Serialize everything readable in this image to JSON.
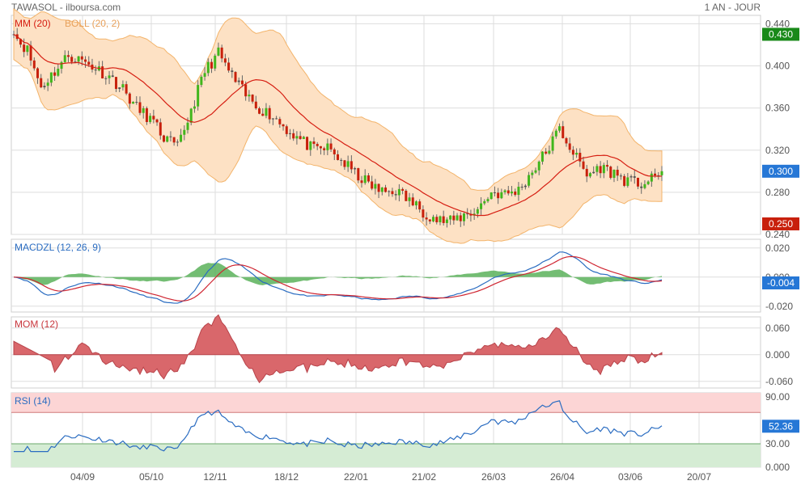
{
  "header": {
    "title": "TAWASOL - ilboursa.com",
    "period": "1 AN - JOUR"
  },
  "colors": {
    "up": "#41b61c",
    "down": "#c8200c",
    "ma": "#d61e12",
    "boll_fill": "#fde1c4",
    "boll_line": "#f3b46b",
    "macd": "#2a6cc1",
    "signal": "#cf2531",
    "hist": "#5ab25a",
    "mom_fill": "#d9676b",
    "rsi_line": "#2a6cc1",
    "rsi_over": "#fcd5d5",
    "rsi_under": "#d5ecd4",
    "grid": "#dddddd",
    "last_price_tag": "#2677d6",
    "high_tag": "#198919",
    "low_tag": "#c8200c"
  },
  "chart_data": [
    {
      "type": "candlestick",
      "panel": "price",
      "legend": [
        "MM (20)",
        "BOLL (20, 2)"
      ],
      "ylim": [
        0.24,
        0.448
      ],
      "y_ticks": [
        "0.440",
        "0.400",
        "0.360",
        "0.320",
        "0.280",
        "0.240"
      ],
      "y_tick_values": [
        0.44,
        0.4,
        0.36,
        0.32,
        0.28,
        0.24
      ],
      "x_ticks": [
        "04/09",
        "05/10",
        "12/11",
        "18/12",
        "22/01",
        "21/02",
        "26/03",
        "26/04",
        "03/06",
        "20/07"
      ],
      "value_tags": [
        {
          "label": "0.430",
          "value": 0.43,
          "role": "high"
        },
        {
          "label": "0.300",
          "value": 0.3,
          "role": "last"
        },
        {
          "label": "0.250",
          "value": 0.25,
          "role": "low"
        }
      ],
      "close_path": [
        [
          0,
          0.43
        ],
        [
          4,
          0.415
        ],
        [
          8,
          0.38
        ],
        [
          12,
          0.395
        ],
        [
          16,
          0.41
        ],
        [
          20,
          0.405
        ],
        [
          24,
          0.398
        ],
        [
          28,
          0.39
        ],
        [
          32,
          0.378
        ],
        [
          36,
          0.36
        ],
        [
          40,
          0.35
        ],
        [
          44,
          0.332
        ],
        [
          48,
          0.322
        ],
        [
          52,
          0.358
        ],
        [
          56,
          0.395
        ],
        [
          60,
          0.412
        ],
        [
          64,
          0.39
        ],
        [
          68,
          0.372
        ],
        [
          72,
          0.36
        ],
        [
          76,
          0.352
        ],
        [
          80,
          0.34
        ],
        [
          84,
          0.33
        ],
        [
          88,
          0.32
        ],
        [
          92,
          0.322
        ],
        [
          96,
          0.31
        ],
        [
          100,
          0.298
        ],
        [
          104,
          0.288
        ],
        [
          108,
          0.28
        ],
        [
          112,
          0.282
        ],
        [
          116,
          0.272
        ],
        [
          120,
          0.262
        ],
        [
          124,
          0.254
        ],
        [
          128,
          0.252
        ],
        [
          132,
          0.258
        ],
        [
          136,
          0.264
        ],
        [
          140,
          0.28
        ],
        [
          144,
          0.278
        ],
        [
          148,
          0.282
        ],
        [
          152,
          0.3
        ],
        [
          156,
          0.318
        ],
        [
          160,
          0.34
        ],
        [
          164,
          0.318
        ],
        [
          168,
          0.296
        ],
        [
          172,
          0.304
        ],
        [
          176,
          0.298
        ],
        [
          180,
          0.29
        ],
        [
          184,
          0.288
        ],
        [
          188,
          0.293
        ],
        [
          190,
          0.3
        ]
      ]
    },
    {
      "type": "line",
      "panel": "macd",
      "legend": [
        "MACDZL (12, 26, 9)"
      ],
      "ylim": [
        -0.024,
        0.026
      ],
      "y_ticks": [
        "0.020",
        "0.000",
        "-0.020"
      ],
      "y_tick_values": [
        0.02,
        0.0,
        -0.02
      ],
      "value_tag": {
        "label": "-0.004",
        "value": -0.004
      }
    },
    {
      "type": "area",
      "panel": "mom",
      "legend": [
        "MOM (12)"
      ],
      "ylim": [
        -0.075,
        0.085
      ],
      "y_ticks": [
        "0.060",
        "0.000",
        "-0.060"
      ],
      "y_tick_values": [
        0.06,
        0.0,
        -0.06
      ]
    },
    {
      "type": "line",
      "panel": "rsi",
      "legend": [
        "RSI (14)"
      ],
      "ylim": [
        0,
        95
      ],
      "y_ticks": [
        "90.00",
        "30.00",
        "0.000"
      ],
      "y_tick_values": [
        90,
        30,
        0
      ],
      "bands": {
        "over": 70,
        "under": 30
      },
      "value_tag": {
        "label": "52.36",
        "value": 52.36
      }
    }
  ]
}
